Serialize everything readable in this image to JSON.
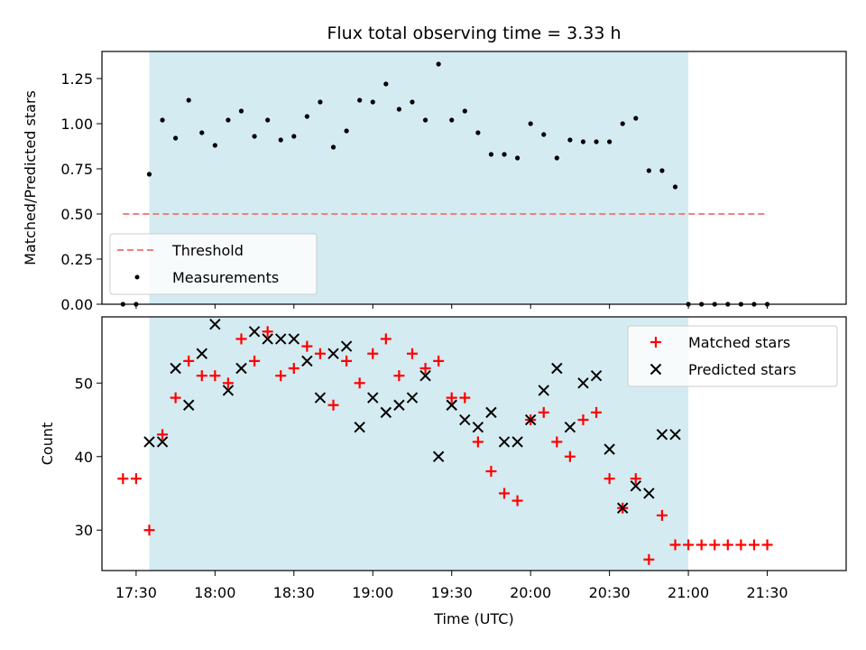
{
  "chart_data": [
    {
      "type": "scatter",
      "title": "Flux total observing time = 3.33 h",
      "ylabel": "Matched/Predicted stars",
      "xlabel": "",
      "ylim": [
        0,
        1.4
      ],
      "yticks": [
        0,
        0.25,
        0.5,
        0.75,
        1.0,
        1.25
      ],
      "ytick_labels": [
        "0.00",
        "0.25",
        "0.50",
        "0.75",
        "1.00",
        "1.25"
      ],
      "shaded_span": {
        "start_min": 1055,
        "end_min": 1260,
        "color": "#d4ebf1"
      },
      "threshold": {
        "name": "Threshold",
        "value": 0.5,
        "x_start": 1045,
        "x_end": 1290,
        "color": "#f08080"
      },
      "series": [
        {
          "name": "Measurements",
          "color": "#000000",
          "x_min": [
            1045,
            1050,
            1055,
            1060,
            1065,
            1070,
            1075,
            1080,
            1085,
            1090,
            1095,
            1100,
            1105,
            1110,
            1115,
            1120,
            1125,
            1130,
            1135,
            1140,
            1145,
            1150,
            1155,
            1160,
            1165,
            1170,
            1175,
            1180,
            1185,
            1190,
            1195,
            1200,
            1205,
            1210,
            1215,
            1220,
            1225,
            1230,
            1235,
            1240,
            1245,
            1250,
            1255,
            1260,
            1265,
            1270,
            1275,
            1280,
            1285,
            1290
          ],
          "values": [
            0,
            0,
            0.72,
            1.02,
            0.92,
            1.13,
            0.95,
            0.88,
            1.02,
            1.07,
            0.93,
            1.02,
            0.91,
            0.93,
            1.04,
            1.12,
            0.87,
            0.96,
            1.13,
            1.12,
            1.22,
            1.08,
            1.12,
            1.02,
            1.33,
            1.02,
            1.07,
            0.95,
            0.83,
            0.83,
            0.81,
            1.0,
            0.94,
            0.81,
            0.91,
            0.9,
            0.9,
            0.9,
            1.0,
            1.03,
            0.74,
            0.74,
            0.65,
            0,
            0,
            0,
            0,
            0,
            0,
            0
          ]
        }
      ],
      "legend": {
        "position": "lower-left",
        "entries": [
          "Threshold",
          "Measurements"
        ]
      }
    },
    {
      "type": "scatter",
      "title": "",
      "ylabel": "Count",
      "xlabel": "Time (UTC)",
      "ylim": [
        24.5,
        59
      ],
      "yticks": [
        30,
        40,
        50
      ],
      "ytick_labels": [
        "30",
        "40",
        "50"
      ],
      "xlim": [
        1037,
        1320
      ],
      "xticks": [
        1050,
        1080,
        1110,
        1140,
        1170,
        1200,
        1230,
        1260,
        1290
      ],
      "xtick_labels": [
        "17:30",
        "18:00",
        "18:30",
        "19:00",
        "19:30",
        "20:00",
        "20:30",
        "21:00",
        "21:30"
      ],
      "series": [
        {
          "name": "Matched stars",
          "color": "#ff0000",
          "marker": "plus",
          "x_min": [
            1045,
            1050,
            1055,
            1060,
            1065,
            1070,
            1075,
            1080,
            1085,
            1090,
            1095,
            1100,
            1105,
            1110,
            1115,
            1120,
            1125,
            1130,
            1135,
            1140,
            1145,
            1150,
            1155,
            1160,
            1165,
            1170,
            1175,
            1180,
            1185,
            1190,
            1195,
            1200,
            1205,
            1210,
            1215,
            1220,
            1225,
            1230,
            1235,
            1240,
            1245,
            1250,
            1255,
            1260,
            1265,
            1270,
            1275,
            1280,
            1285,
            1290
          ],
          "values": [
            37,
            37,
            30,
            43,
            48,
            53,
            51,
            51,
            50,
            56,
            53,
            57,
            51,
            52,
            55,
            54,
            47,
            53,
            50,
            54,
            56,
            51,
            54,
            52,
            53,
            48,
            48,
            42,
            38,
            35,
            34,
            45,
            46,
            42,
            40,
            45,
            46,
            37,
            33,
            37,
            26,
            32,
            28,
            28,
            28,
            28,
            28,
            28,
            28,
            28
          ]
        },
        {
          "name": "Predicted stars",
          "color": "#000000",
          "marker": "x",
          "x_min": [
            1055,
            1060,
            1065,
            1070,
            1075,
            1080,
            1085,
            1090,
            1095,
            1100,
            1105,
            1110,
            1115,
            1120,
            1125,
            1130,
            1135,
            1140,
            1145,
            1150,
            1155,
            1160,
            1165,
            1170,
            1175,
            1180,
            1185,
            1190,
            1195,
            1200,
            1205,
            1210,
            1215,
            1220,
            1225,
            1230,
            1235,
            1240,
            1245,
            1250,
            1255
          ],
          "values": [
            42,
            42,
            52,
            47,
            54,
            58,
            49,
            52,
            57,
            56,
            56,
            56,
            53,
            48,
            54,
            55,
            44,
            48,
            46,
            47,
            48,
            51,
            40,
            47,
            45,
            44,
            46,
            42,
            42,
            45,
            49,
            52,
            44,
            50,
            51,
            41,
            33,
            36,
            35,
            43,
            43
          ]
        }
      ],
      "legend": {
        "position": "upper-right",
        "entries": [
          "Matched stars",
          "Predicted stars"
        ]
      }
    }
  ]
}
